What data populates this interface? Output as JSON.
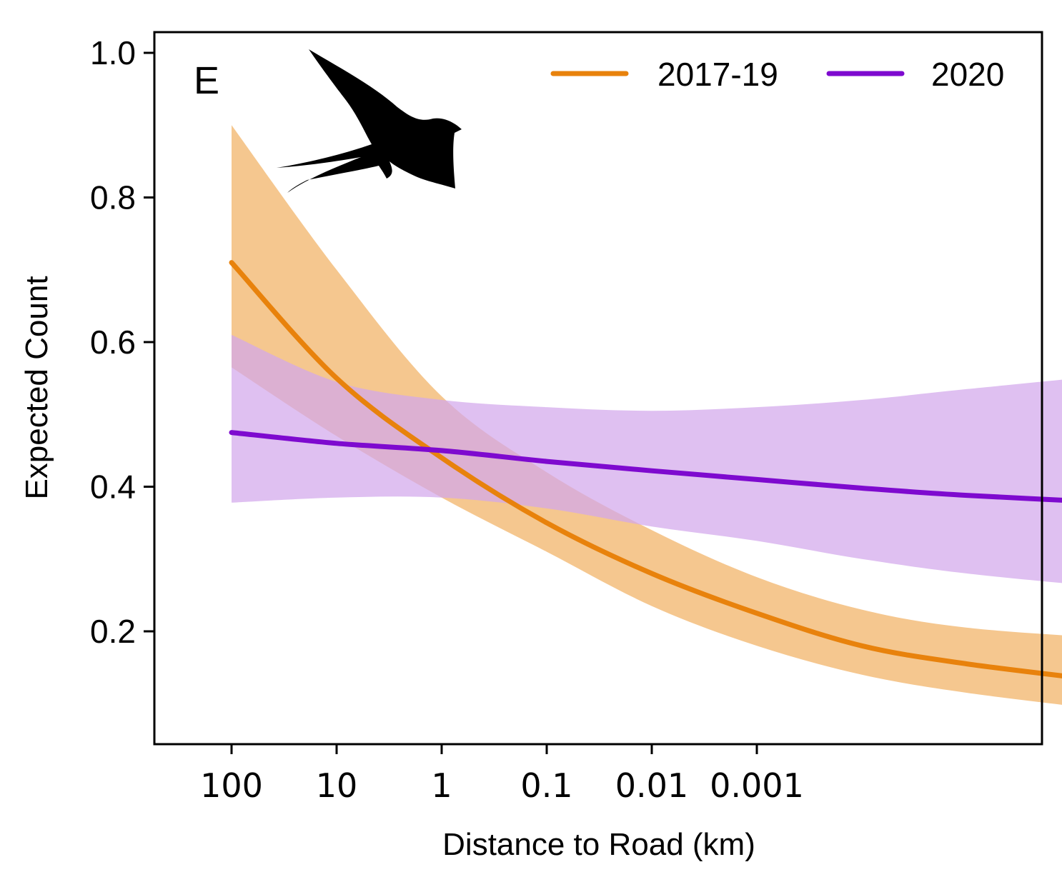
{
  "chart_data": {
    "type": "line",
    "panel_label": "E",
    "xlabel": "Distance to Road (km)",
    "ylabel": "Expected Count",
    "x_scale": "log10 (reversed: distance decreases to the right)",
    "x_ticks": [
      {
        "value": 100,
        "label": "100"
      },
      {
        "value": 10,
        "label": "10"
      },
      {
        "value": 1,
        "label": "1"
      },
      {
        "value": 0.1,
        "label": "0.1"
      },
      {
        "value": 0.01,
        "label": "0.01"
      },
      {
        "value": 0.001,
        "label": "0.001"
      }
    ],
    "x_range": [
      100,
      4e-07
    ],
    "ylim": [
      0.05,
      1.03
    ],
    "y_ticks": [
      {
        "value": 0.2,
        "label": "0.2"
      },
      {
        "value": 0.4,
        "label": "0.4"
      },
      {
        "value": 0.6,
        "label": "0.6"
      },
      {
        "value": 0.8,
        "label": "0.8"
      },
      {
        "value": 1.0,
        "label": "1.0"
      }
    ],
    "grid": false,
    "legend_position": "top-right",
    "series": [
      {
        "name": "2017-19",
        "color": "#E8820C",
        "band_color": "#F5C78F",
        "x": [
          100,
          10,
          1,
          0.1,
          0.01,
          0.001,
          0.0001,
          1e-05,
          4e-07
        ],
        "values": [
          0.71,
          0.55,
          0.44,
          0.35,
          0.28,
          0.225,
          0.18,
          0.155,
          0.13
        ],
        "lower": [
          0.565,
          0.47,
          0.385,
          0.31,
          0.235,
          0.18,
          0.14,
          0.115,
          0.09
        ],
        "upper": [
          0.9,
          0.7,
          0.525,
          0.42,
          0.34,
          0.275,
          0.23,
          0.205,
          0.19
        ]
      },
      {
        "name": "2020",
        "color": "#7E0ACF",
        "band_color": "#D2A8EB",
        "x": [
          100,
          10,
          1,
          0.1,
          0.01,
          0.001,
          0.0001,
          1e-05,
          4e-07
        ],
        "values": [
          0.475,
          0.46,
          0.45,
          0.435,
          0.422,
          0.41,
          0.398,
          0.388,
          0.378
        ],
        "lower": [
          0.378,
          0.385,
          0.385,
          0.37,
          0.345,
          0.325,
          0.3,
          0.28,
          0.26
        ],
        "upper": [
          0.61,
          0.545,
          0.52,
          0.51,
          0.505,
          0.51,
          0.52,
          0.535,
          0.555
        ]
      }
    ]
  },
  "icons": {
    "bird": "swallow-silhouette-icon"
  }
}
